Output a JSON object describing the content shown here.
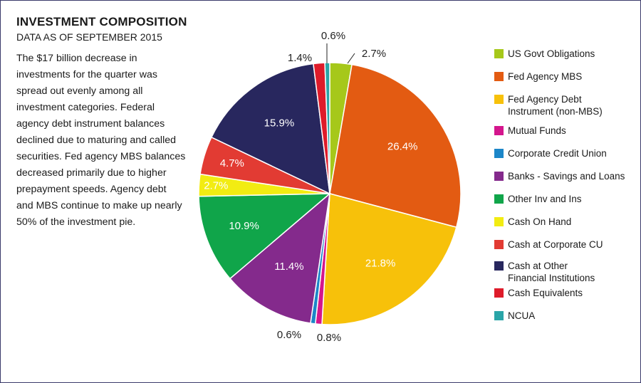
{
  "header": {
    "title": "INVESTMENT COMPOSITION",
    "subtitle": "DATA AS OF SEPTEMBER 2015"
  },
  "description": "The $17 billion decrease in investments for the quarter was spread out evenly among all investment categories. Federal agency debt instrument balances declined due to maturing and called securities. Fed agency MBS balances decreased primarily due to higher prepayment speeds. Agency debt and MBS continue to make up nearly 50% of the investment pie.",
  "chart_data": {
    "type": "pie",
    "title": "INVESTMENT COMPOSITION",
    "subtitle": "DATA AS OF SEPTEMBER 2015",
    "start_angle_deg": 0,
    "direction": "clockwise",
    "legend_position": "right",
    "slices": [
      {
        "name": "US Govt Obligations",
        "value": 2.7,
        "label": "2.7%",
        "color": "#a6c81a",
        "label_color": "#222222",
        "label_outside": true
      },
      {
        "name": "Fed Agency MBS",
        "value": 26.4,
        "label": "26.4%",
        "color": "#e35b12",
        "label_color": "#ffffff",
        "label_outside": false
      },
      {
        "name": "Fed Agency Debt\nInstrument (non-MBS)",
        "value": 21.8,
        "label": "21.8%",
        "color": "#f7c10a",
        "label_color": "#ffffff",
        "label_outside": false
      },
      {
        "name": "Mutual Funds",
        "value": 0.8,
        "label": "0.8%",
        "color": "#d4168d",
        "label_color": "#222222",
        "label_outside": true
      },
      {
        "name": "Corporate Credit Union",
        "value": 0.6,
        "label": "0.6%",
        "color": "#1c86c8",
        "label_color": "#222222",
        "label_outside": true
      },
      {
        "name": "Banks - Savings and Loans",
        "value": 11.4,
        "label": "11.4%",
        "color": "#842a8c",
        "label_color": "#ffffff",
        "label_outside": false
      },
      {
        "name": "Other Inv and Ins",
        "value": 10.9,
        "label": "10.9%",
        "color": "#10a54a",
        "label_color": "#ffffff",
        "label_outside": false
      },
      {
        "name": "Cash On Hand",
        "value": 2.7,
        "label": "2.7%",
        "color": "#f2ec12",
        "label_color": "#ffffff",
        "label_outside": false
      },
      {
        "name": "Cash at Corporate CU",
        "value": 4.7,
        "label": "4.7%",
        "color": "#e23b33",
        "label_color": "#ffffff",
        "label_outside": false
      },
      {
        "name": "Cash at Other\nFinancial Institutions",
        "value": 15.9,
        "label": "15.9%",
        "color": "#28275e",
        "label_color": "#ffffff",
        "label_outside": false
      },
      {
        "name": "Cash Equivalents",
        "value": 1.4,
        "label": "1.4%",
        "color": "#de1b2a",
        "label_color": "#222222",
        "label_outside": true
      },
      {
        "name": "NCUA",
        "value": 0.6,
        "label": "0.6%",
        "color": "#2aa5a8",
        "label_color": "#222222",
        "label_outside": true
      }
    ]
  }
}
